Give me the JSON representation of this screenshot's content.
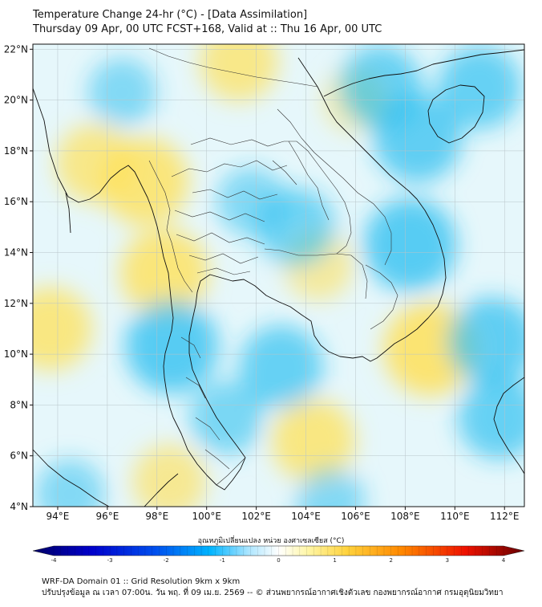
{
  "title": {
    "line1": "Temperature Change 24-hr (°C) - [Data Assimilation]",
    "line2": "Thursday 09 Apr, 00 UTC FCST+168, Valid at :: Thu 16 Apr, 00 UTC"
  },
  "map": {
    "lon_range": [
      93,
      112.8
    ],
    "lat_range": [
      4,
      22.2
    ],
    "lat_ticks": [
      "22°N",
      "20°N",
      "18°N",
      "16°N",
      "14°N",
      "12°N",
      "10°N",
      "8°N",
      "6°N",
      "4°N"
    ],
    "lat_values": [
      22,
      20,
      18,
      16,
      14,
      12,
      10,
      8,
      6,
      4
    ],
    "lon_ticks": [
      "94°E",
      "96°E",
      "98°E",
      "100°E",
      "102°E",
      "104°E",
      "106°E",
      "108°E",
      "110°E",
      "112°E"
    ],
    "lon_values": [
      94,
      96,
      98,
      100,
      102,
      104,
      106,
      108,
      110,
      112
    ],
    "grid": true,
    "field_features": [
      {
        "type": "warm",
        "lon": 97.5,
        "lat": 16.8,
        "value": 0.9
      },
      {
        "type": "warm",
        "lon": 95.5,
        "lat": 17.5,
        "value": 0.7
      },
      {
        "type": "warm",
        "lon": 98.3,
        "lat": 13.2,
        "value": 0.9
      },
      {
        "type": "warm",
        "lon": 93.7,
        "lat": 11.0,
        "value": 0.8
      },
      {
        "type": "warm",
        "lon": 109.0,
        "lat": 10.2,
        "value": 1.0
      },
      {
        "type": "warm",
        "lon": 104.3,
        "lat": 6.6,
        "value": 0.8
      },
      {
        "type": "warm",
        "lon": 98.5,
        "lat": 5.0,
        "value": 0.6
      },
      {
        "type": "warm",
        "lon": 101.3,
        "lat": 21.5,
        "value": 0.7
      },
      {
        "type": "warm",
        "lon": 104.5,
        "lat": 13.5,
        "value": 0.5
      },
      {
        "type": "warm",
        "lon": 106.0,
        "lat": 20.0,
        "value": 0.4
      },
      {
        "type": "cool",
        "lon": 108.2,
        "lat": 14.3,
        "value": -1.4
      },
      {
        "type": "cool",
        "lon": 107.0,
        "lat": 20.5,
        "value": -0.8
      },
      {
        "type": "cool",
        "lon": 108.5,
        "lat": 18.5,
        "value": -0.9
      },
      {
        "type": "cool",
        "lon": 111.0,
        "lat": 20.5,
        "value": -0.8
      },
      {
        "type": "cool",
        "lon": 98.6,
        "lat": 10.3,
        "value": -1.0
      },
      {
        "type": "cool",
        "lon": 103.0,
        "lat": 9.5,
        "value": -0.8
      },
      {
        "type": "cool",
        "lon": 111.5,
        "lat": 10.5,
        "value": -0.9
      },
      {
        "type": "cool",
        "lon": 111.8,
        "lat": 7.5,
        "value": -0.8
      },
      {
        "type": "cool",
        "lon": 100.8,
        "lat": 7.5,
        "value": -0.6
      },
      {
        "type": "cool",
        "lon": 94.5,
        "lat": 4.5,
        "value": -0.5
      },
      {
        "type": "cool",
        "lon": 105.0,
        "lat": 4.2,
        "value": -0.5
      },
      {
        "type": "cool",
        "lon": 103.6,
        "lat": 15.0,
        "value": -0.7
      },
      {
        "type": "cool",
        "lon": 101.8,
        "lat": 16.0,
        "value": -0.5
      },
      {
        "type": "cool",
        "lon": 96.6,
        "lat": 20.3,
        "value": -0.5
      }
    ]
  },
  "colorbar": {
    "title": "อุณหภูมิเปลี่ยนแปลง หน่วย องศาเซลเซียส (°C)",
    "tick_labels": [
      "-4",
      "-3",
      "-2",
      "-1",
      "0",
      "1",
      "2",
      "3",
      "4"
    ],
    "range": [
      -4,
      4
    ]
  },
  "footer": {
    "line1": "WRF-DA Domain 01 :: Grid Resolution 9km x 9km",
    "line2": "ปรับปรุงข้อมูล ณ เวลา 07:00น. วัน พฤ. ที่ 09 เม.ย. 2569 -- © ส่วนพยากรณ์อากาศเชิงตัวเลข กองพยากรณ์อากาศ กรมอุตุนิยมวิทยา"
  }
}
